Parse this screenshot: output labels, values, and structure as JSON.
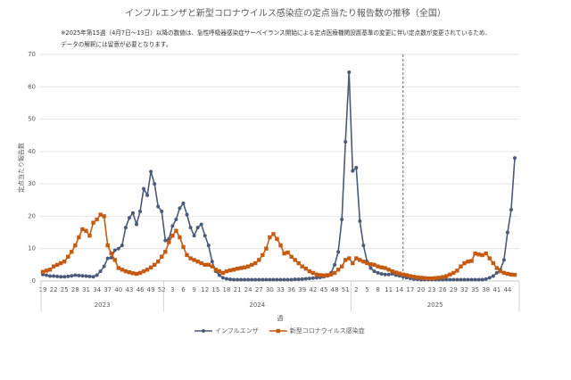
{
  "chart_data": {
    "type": "line",
    "title": "インフルエンザと新型コロナウイルス感染症の定点当たり報告数の推移（全国）",
    "notes": [
      "※2025年第15週（4月7日～13日）以降の数値は、急性呼吸器感染症サーベイランス開始による定点医療機関設置基準の変更に伴い定点数が変更されているため、",
      "データの解釈には留意が必要となります。"
    ],
    "y_label": "定点当たり報告数",
    "x_label": "週",
    "categories": [
      "19",
      null,
      null,
      "22",
      null,
      null,
      "25",
      null,
      null,
      "28",
      null,
      null,
      "31",
      null,
      null,
      "34",
      null,
      null,
      "37",
      null,
      null,
      "40",
      null,
      null,
      "43",
      null,
      null,
      "46",
      null,
      null,
      "49",
      null,
      null,
      "52",
      null,
      null,
      "3",
      null,
      null,
      "6",
      null,
      null,
      "9",
      null,
      null,
      "12",
      null,
      null,
      "15",
      null,
      null,
      "18",
      null,
      null,
      "21",
      null,
      null,
      "24",
      null,
      null,
      "27",
      null,
      null,
      "30",
      null,
      null,
      "33",
      null,
      null,
      "36",
      null,
      null,
      "39",
      null,
      null,
      "42",
      null,
      null,
      "45",
      null,
      null,
      "48",
      null,
      null,
      "51",
      null,
      null,
      "2",
      null,
      null,
      "5",
      null,
      null,
      "8",
      null,
      null,
      "11",
      null,
      null,
      "14",
      null,
      null,
      "17",
      null,
      null,
      "20",
      null,
      null,
      "23",
      null,
      null,
      "26",
      null,
      null,
      "29",
      null,
      null,
      "32",
      null,
      null,
      "35",
      null,
      null,
      "38",
      null,
      null,
      "41",
      null,
      null,
      "44",
      null,
      null
    ],
    "groups": [
      "2023",
      "2024",
      "2025"
    ],
    "marker_category_index": 100,
    "series": [
      {
        "name": "インフルエンザ",
        "color": "#4b5a78",
        "marker": "circle",
        "values": [
          2.0,
          1.8,
          1.5,
          1.5,
          1.4,
          1.3,
          1.3,
          1.4,
          1.6,
          1.8,
          1.7,
          1.6,
          1.5,
          1.4,
          1.3,
          1.8,
          3.0,
          4.5,
          7.0,
          7.2,
          9.5,
          10.0,
          11.0,
          16.5,
          19.5,
          21.0,
          17.5,
          21.5,
          28.5,
          26.5,
          33.8,
          30.0,
          23.0,
          21.5,
          12.5,
          13.0,
          17.0,
          19.0,
          22.5,
          24.0,
          20.5,
          16.5,
          14.0,
          16.5,
          17.5,
          14.0,
          11.0,
          6.0,
          3.0,
          1.8,
          1.0,
          0.7,
          0.5,
          0.4,
          0.4,
          0.4,
          0.4,
          0.4,
          0.4,
          0.4,
          0.4,
          0.4,
          0.4,
          0.4,
          0.4,
          0.4,
          0.4,
          0.4,
          0.4,
          0.4,
          0.5,
          0.5,
          0.6,
          0.7,
          0.8,
          0.9,
          1.0,
          1.1,
          1.3,
          1.6,
          2.5,
          5.0,
          9.0,
          19.0,
          43.0,
          64.5,
          34.0,
          35.0,
          18.5,
          11.0,
          6.0,
          4.0,
          3.0,
          2.5,
          2.2,
          2.0,
          2.0,
          2.2,
          1.8,
          1.6,
          1.3,
          1.0,
          0.8,
          0.6,
          0.5,
          0.4,
          0.4,
          0.4,
          0.4,
          0.4,
          0.4,
          0.4,
          0.4,
          0.4,
          0.4,
          0.4,
          0.4,
          0.4,
          0.4,
          0.4,
          0.4,
          0.4,
          0.4,
          0.6,
          1.0,
          1.5,
          2.5,
          3.5,
          6.5,
          15.0,
          22.0,
          38.0
        ]
      },
      {
        "name": "新型コロナウイルス感染症",
        "color": "#c55a11",
        "marker": "square",
        "values": [
          2.8,
          3.2,
          3.5,
          4.5,
          5.0,
          5.5,
          6.0,
          7.5,
          9.0,
          11.0,
          13.5,
          16.0,
          15.5,
          14.0,
          18.0,
          19.0,
          20.5,
          20.0,
          11.0,
          8.5,
          6.5,
          4.0,
          3.5,
          3.0,
          2.7,
          2.4,
          2.2,
          2.5,
          3.0,
          3.5,
          4.2,
          5.0,
          6.0,
          7.5,
          9.0,
          12.0,
          14.0,
          15.5,
          13.5,
          10.5,
          8.0,
          7.0,
          6.5,
          6.0,
          5.5,
          5.0,
          5.0,
          4.5,
          3.5,
          3.0,
          2.5,
          3.0,
          3.3,
          3.5,
          3.8,
          4.0,
          4.2,
          4.5,
          5.0,
          5.5,
          6.5,
          8.0,
          10.0,
          13.5,
          14.5,
          13.0,
          11.0,
          8.5,
          8.8,
          7.5,
          6.5,
          5.5,
          4.5,
          3.8,
          3.0,
          2.5,
          2.0,
          1.8,
          1.7,
          1.8,
          2.0,
          2.5,
          3.5,
          4.5,
          6.5,
          7.0,
          5.5,
          7.0,
          6.5,
          6.0,
          5.5,
          5.2,
          5.0,
          4.5,
          4.2,
          4.0,
          3.5,
          3.0,
          2.6,
          2.3,
          2.0,
          1.8,
          1.5,
          1.3,
          1.1,
          1.0,
          0.9,
          0.8,
          0.8,
          0.9,
          1.0,
          1.2,
          1.5,
          2.0,
          2.5,
          3.2,
          4.5,
          5.5,
          6.0,
          6.2,
          8.5,
          8.2,
          8.0,
          8.5,
          7.0,
          5.5,
          4.0,
          3.0,
          2.5,
          2.2,
          2.0,
          1.9
        ]
      }
    ],
    "ylim": [
      0,
      70
    ],
    "yticks": [
      0,
      10,
      20,
      30,
      40,
      50,
      60,
      70
    ],
    "grid": true
  }
}
